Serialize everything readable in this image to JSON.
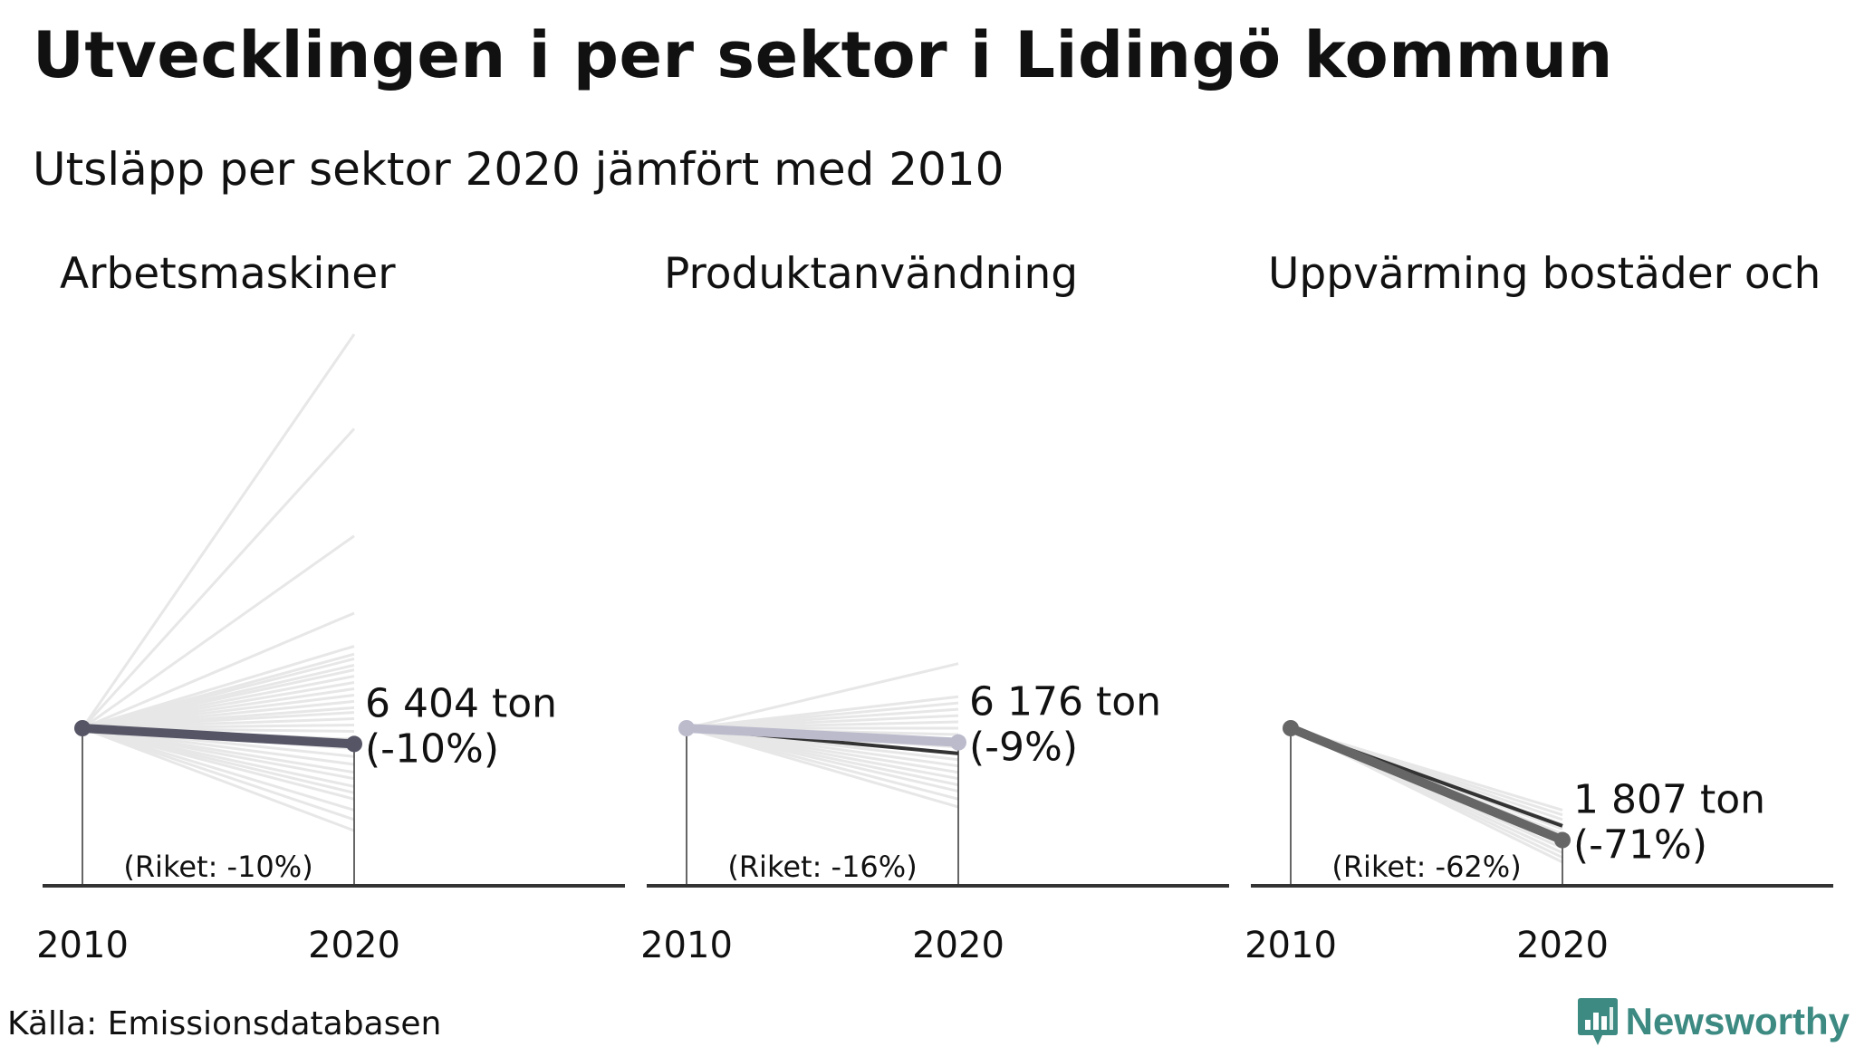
{
  "title": "Utvecklingen i per sektor i Lidingö kommun",
  "subtitle": "Utsläpp per sektor 2020 jämfört med 2010",
  "source": "Källa: Emissionsdatabasen",
  "logo": {
    "name": "Newsworthy",
    "icon": "bar-chart-badge-icon",
    "color": "#3d8a82"
  },
  "chart_data": [
    {
      "type": "line",
      "title": "Arbetsmaskiner",
      "x": [
        "2010",
        "2020"
      ],
      "value_label": "6 404 ton",
      "change_label": "(-10%)",
      "riket_label": "(Riket: -10%)",
      "index_2020": 0.9,
      "national_index_2020": 0.9,
      "line_color": "#555566",
      "comparison_indices_2020": [
        3.5,
        2.9,
        2.22,
        1.73,
        1.52,
        1.47,
        1.44,
        1.4,
        1.37,
        1.33,
        1.29,
        1.25,
        1.21,
        1.17,
        1.13,
        1.1,
        1.06,
        1.02,
        0.98,
        0.93,
        0.87,
        0.82,
        0.77,
        0.72,
        0.68,
        0.63,
        0.59,
        0.55,
        0.48,
        0.42,
        0.35
      ]
    },
    {
      "type": "line",
      "title": "Produktanvändning",
      "x": [
        "2010",
        "2020"
      ],
      "value_label": "6 176 ton",
      "change_label": "(-9%)",
      "riket_label": "(Riket: -16%)",
      "index_2020": 0.91,
      "national_index_2020": 0.84,
      "line_color": "#bbbbcc",
      "comparison_indices_2020": [
        1.41,
        1.2,
        1.16,
        1.12,
        1.08,
        1.04,
        1.0,
        0.96,
        0.92,
        0.88,
        0.84,
        0.8,
        0.76,
        0.72,
        0.68,
        0.64,
        0.6,
        0.55,
        0.5
      ]
    },
    {
      "type": "line",
      "title": "Uppvärming bostäder och",
      "x": [
        "2010",
        "2020"
      ],
      "value_label": "1 807 ton",
      "change_label": "(-71%)",
      "riket_label": "(Riket: -62%)",
      "index_2020": 0.29,
      "national_index_2020": 0.38,
      "line_color": "#666666",
      "comparison_indices_2020": [
        0.48,
        0.45,
        0.42,
        0.39,
        0.36,
        0.33,
        0.3,
        0.27,
        0.24,
        0.21,
        0.18,
        0.15
      ]
    }
  ]
}
